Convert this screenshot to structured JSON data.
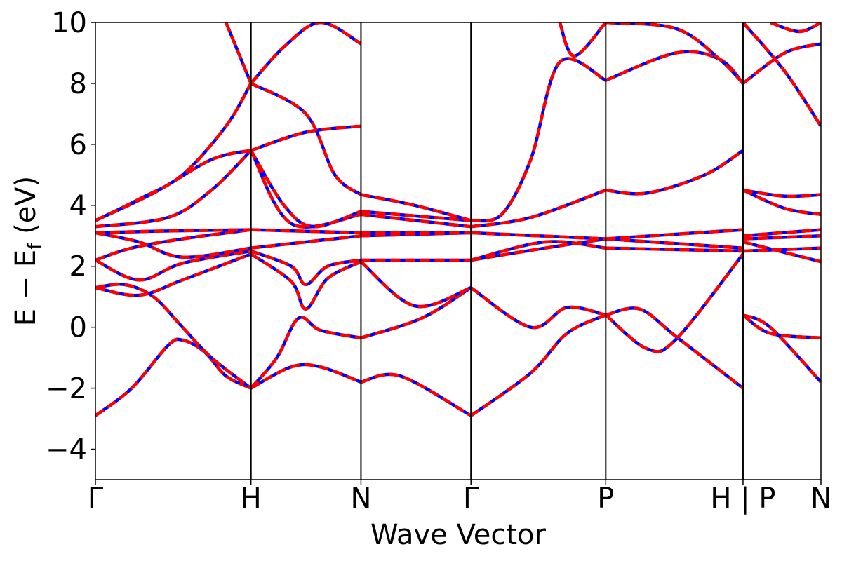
{
  "chart_data": {
    "type": "line",
    "title": "",
    "xlabel": "Wave Vector",
    "ylabel_main": "E − E",
    "ylabel_sub": "f",
    "ylabel_unit": " (eV)",
    "ylim": [
      -5,
      10
    ],
    "yticks": [
      -4,
      -2,
      0,
      2,
      4,
      6,
      8,
      10
    ],
    "ytick_labels": [
      "−4",
      "−2",
      "0",
      "2",
      "4",
      "6",
      "8",
      "10"
    ],
    "xlim": [
      0,
      1
    ],
    "kpoints": [
      {
        "label": "Γ",
        "pos": 0.0
      },
      {
        "label": "H",
        "pos": 0.2144
      },
      {
        "label": "N",
        "pos": 0.366
      },
      {
        "label": "Γ",
        "pos": 0.5176
      },
      {
        "label": "P",
        "pos": 0.7034
      },
      {
        "label": "H | P",
        "pos": 0.8926
      },
      {
        "label": "N",
        "pos": 1.0
      }
    ],
    "grid": false,
    "line_style": {
      "solid_color": "#0000ff",
      "dashed_color": "#ff0000"
    },
    "series": [
      {
        "segment": "Γ-H",
        "values": [
          [
            0.0,
            -2.9
          ],
          [
            0.05,
            -2.0
          ],
          [
            0.1,
            -0.6
          ],
          [
            0.12,
            -0.42
          ],
          [
            0.15,
            -0.8
          ],
          [
            0.18,
            -1.6
          ],
          [
            0.2144,
            -2.0
          ]
        ]
      },
      {
        "segment": "Γ-H",
        "values": [
          [
            0.0,
            1.3
          ],
          [
            0.04,
            1.4
          ],
          [
            0.08,
            1.0
          ],
          [
            0.12,
            0.0
          ],
          [
            0.16,
            -1.0
          ],
          [
            0.2144,
            -2.0
          ]
        ]
      },
      {
        "segment": "Γ-H",
        "values": [
          [
            0.0,
            1.3
          ],
          [
            0.06,
            1.05
          ],
          [
            0.12,
            1.55
          ],
          [
            0.2144,
            2.4
          ]
        ]
      },
      {
        "segment": "Γ-H",
        "values": [
          [
            0.0,
            2.2
          ],
          [
            0.06,
            1.55
          ],
          [
            0.12,
            2.1
          ],
          [
            0.2144,
            2.5
          ]
        ]
      },
      {
        "segment": "Γ-H",
        "values": [
          [
            0.0,
            2.2
          ],
          [
            0.05,
            2.6
          ],
          [
            0.12,
            2.9
          ],
          [
            0.2144,
            3.2
          ]
        ]
      },
      {
        "segment": "Γ-H",
        "values": [
          [
            0.0,
            3.1
          ],
          [
            0.06,
            2.8
          ],
          [
            0.12,
            2.3
          ],
          [
            0.2144,
            2.6
          ]
        ]
      },
      {
        "segment": "Γ-H",
        "values": [
          [
            0.0,
            3.1
          ],
          [
            0.08,
            3.15
          ],
          [
            0.2144,
            3.2
          ]
        ]
      },
      {
        "segment": "Γ-H",
        "values": [
          [
            0.0,
            3.3
          ],
          [
            0.1,
            3.6
          ],
          [
            0.16,
            4.5
          ],
          [
            0.2144,
            5.8
          ]
        ]
      },
      {
        "segment": "Γ-H",
        "values": [
          [
            0.0,
            3.5
          ],
          [
            0.08,
            4.4
          ],
          [
            0.16,
            5.5
          ],
          [
            0.2144,
            5.8
          ]
        ]
      },
      {
        "segment": "Γ-H",
        "values": [
          [
            0.0,
            3.5
          ],
          [
            0.06,
            4.2
          ],
          [
            0.12,
            5.0
          ],
          [
            0.18,
            6.6
          ],
          [
            0.2144,
            8.0
          ]
        ]
      },
      {
        "segment": "Γ-H",
        "values": [
          [
            0.18,
            10.0
          ],
          [
            0.2144,
            8.0
          ]
        ]
      },
      {
        "segment": "H-N",
        "values": [
          [
            0.2144,
            -2.0
          ],
          [
            0.27,
            -1.3
          ],
          [
            0.31,
            -1.3
          ],
          [
            0.366,
            -1.8
          ]
        ]
      },
      {
        "segment": "H-N",
        "values": [
          [
            0.2144,
            -2.0
          ],
          [
            0.25,
            -1.0
          ],
          [
            0.28,
            0.3
          ],
          [
            0.31,
            -0.1
          ],
          [
            0.366,
            -0.35
          ]
        ]
      },
      {
        "segment": "H-N",
        "values": [
          [
            0.2144,
            2.4
          ],
          [
            0.27,
            1.5
          ],
          [
            0.29,
            0.6
          ],
          [
            0.32,
            1.6
          ],
          [
            0.366,
            2.15
          ]
        ]
      },
      {
        "segment": "H-N",
        "values": [
          [
            0.2144,
            2.5
          ],
          [
            0.27,
            2.0
          ],
          [
            0.29,
            1.4
          ],
          [
            0.32,
            2.0
          ],
          [
            0.366,
            2.2
          ]
        ]
      },
      {
        "segment": "H-N",
        "values": [
          [
            0.2144,
            2.6
          ],
          [
            0.366,
            3.0
          ]
        ]
      },
      {
        "segment": "H-N",
        "values": [
          [
            0.2144,
            3.2
          ],
          [
            0.366,
            3.1
          ]
        ]
      },
      {
        "segment": "H-N",
        "values": [
          [
            0.2144,
            5.8
          ],
          [
            0.27,
            3.4
          ],
          [
            0.366,
            3.7
          ]
        ]
      },
      {
        "segment": "H-N",
        "values": [
          [
            0.2144,
            5.8
          ],
          [
            0.26,
            4.0
          ],
          [
            0.3,
            3.3
          ],
          [
            0.366,
            3.8
          ]
        ]
      },
      {
        "segment": "H-N",
        "values": [
          [
            0.2144,
            5.8
          ],
          [
            0.29,
            6.4
          ],
          [
            0.366,
            6.6
          ]
        ]
      },
      {
        "segment": "H-N",
        "values": [
          [
            0.2144,
            8.0
          ],
          [
            0.29,
            7.0
          ],
          [
            0.33,
            5.0
          ],
          [
            0.366,
            4.35
          ]
        ]
      },
      {
        "segment": "H-N",
        "values": [
          [
            0.2144,
            8.0
          ],
          [
            0.26,
            9.2
          ],
          [
            0.31,
            10.0
          ],
          [
            0.366,
            9.3
          ]
        ]
      },
      {
        "segment": "N-Γ",
        "values": [
          [
            0.366,
            -1.8
          ],
          [
            0.42,
            -1.6
          ],
          [
            0.5176,
            -2.9
          ]
        ]
      },
      {
        "segment": "N-Γ",
        "values": [
          [
            0.366,
            -0.35
          ],
          [
            0.45,
            0.3
          ],
          [
            0.5176,
            1.3
          ]
        ]
      },
      {
        "segment": "N-Γ",
        "values": [
          [
            0.366,
            2.15
          ],
          [
            0.44,
            0.7
          ],
          [
            0.5176,
            1.3
          ]
        ]
      },
      {
        "segment": "N-Γ",
        "values": [
          [
            0.366,
            2.2
          ],
          [
            0.5176,
            2.2
          ]
        ]
      },
      {
        "segment": "N-Γ",
        "values": [
          [
            0.366,
            3.0
          ],
          [
            0.5176,
            3.1
          ]
        ]
      },
      {
        "segment": "N-Γ",
        "values": [
          [
            0.366,
            3.1
          ],
          [
            0.5176,
            3.1
          ]
        ]
      },
      {
        "segment": "N-Γ",
        "values": [
          [
            0.366,
            3.7
          ],
          [
            0.5176,
            3.3
          ]
        ]
      },
      {
        "segment": "N-Γ",
        "values": [
          [
            0.366,
            3.8
          ],
          [
            0.5176,
            3.5
          ]
        ]
      },
      {
        "segment": "N-Γ",
        "values": [
          [
            0.366,
            4.35
          ],
          [
            0.44,
            4.0
          ],
          [
            0.5176,
            3.5
          ]
        ]
      },
      {
        "segment": "Γ-P",
        "values": [
          [
            0.5176,
            -2.9
          ],
          [
            0.6,
            -1.5
          ],
          [
            0.65,
            -0.2
          ],
          [
            0.7034,
            0.4
          ]
        ]
      },
      {
        "segment": "Γ-P",
        "values": [
          [
            0.5176,
            1.3
          ],
          [
            0.6,
            0.0
          ],
          [
            0.65,
            0.65
          ],
          [
            0.7034,
            0.4
          ]
        ]
      },
      {
        "segment": "Γ-P",
        "values": [
          [
            0.5176,
            2.2
          ],
          [
            0.62,
            2.6
          ],
          [
            0.7034,
            2.9
          ]
        ]
      },
      {
        "segment": "Γ-P",
        "values": [
          [
            0.5176,
            2.2
          ],
          [
            0.62,
            2.8
          ],
          [
            0.7034,
            2.6
          ]
        ]
      },
      {
        "segment": "Γ-P",
        "values": [
          [
            0.5176,
            3.1
          ],
          [
            0.7034,
            2.9
          ]
        ]
      },
      {
        "segment": "Γ-P",
        "values": [
          [
            0.5176,
            3.3
          ],
          [
            0.6,
            3.6
          ],
          [
            0.7034,
            4.5
          ]
        ]
      },
      {
        "segment": "Γ-P",
        "values": [
          [
            0.5176,
            3.5
          ],
          [
            0.56,
            3.7
          ],
          [
            0.6,
            5.5
          ],
          [
            0.64,
            8.7
          ],
          [
            0.7034,
            8.1
          ]
        ]
      },
      {
        "segment": "Γ-P",
        "values": [
          [
            0.64,
            10.0
          ],
          [
            0.66,
            8.9
          ],
          [
            0.7034,
            10.0
          ]
        ]
      },
      {
        "segment": "P-H",
        "values": [
          [
            0.7034,
            0.4
          ],
          [
            0.75,
            0.6
          ],
          [
            0.8,
            -0.3
          ],
          [
            0.8926,
            -2.0
          ]
        ]
      },
      {
        "segment": "P-H",
        "values": [
          [
            0.7034,
            0.4
          ],
          [
            0.76,
            -0.7
          ],
          [
            0.8,
            -0.4
          ],
          [
            0.8926,
            2.4
          ]
        ]
      },
      {
        "segment": "P-H",
        "values": [
          [
            0.7034,
            2.6
          ],
          [
            0.8926,
            2.5
          ]
        ]
      },
      {
        "segment": "P-H",
        "values": [
          [
            0.7034,
            2.9
          ],
          [
            0.8926,
            2.6
          ]
        ]
      },
      {
        "segment": "P-H",
        "values": [
          [
            0.7034,
            2.9
          ],
          [
            0.8926,
            3.2
          ]
        ]
      },
      {
        "segment": "P-H",
        "values": [
          [
            0.7034,
            4.5
          ],
          [
            0.76,
            4.4
          ],
          [
            0.84,
            5.0
          ],
          [
            0.8926,
            5.8
          ]
        ]
      },
      {
        "segment": "P-H",
        "values": [
          [
            0.7034,
            8.1
          ],
          [
            0.8,
            9.0
          ],
          [
            0.86,
            8.8
          ],
          [
            0.8926,
            8.0
          ]
        ]
      },
      {
        "segment": "P-H",
        "values": [
          [
            0.7034,
            10.0
          ],
          [
            0.8,
            9.8
          ],
          [
            0.86,
            8.8
          ],
          [
            0.8926,
            8.0
          ]
        ]
      },
      {
        "segment": "P-N",
        "values": [
          [
            0.8926,
            0.4
          ],
          [
            0.93,
            0.0
          ],
          [
            1.0,
            -1.8
          ]
        ]
      },
      {
        "segment": "P-N",
        "values": [
          [
            0.8926,
            0.4
          ],
          [
            0.93,
            -0.2
          ],
          [
            1.0,
            -0.35
          ]
        ]
      },
      {
        "segment": "P-N",
        "values": [
          [
            0.8926,
            2.5
          ],
          [
            1.0,
            2.6
          ]
        ]
      },
      {
        "segment": "P-N",
        "values": [
          [
            0.8926,
            2.8
          ],
          [
            1.0,
            2.15
          ]
        ]
      },
      {
        "segment": "P-N",
        "values": [
          [
            0.8926,
            2.9
          ],
          [
            1.0,
            3.0
          ]
        ]
      },
      {
        "segment": "P-N",
        "values": [
          [
            0.8926,
            3.0
          ],
          [
            1.0,
            3.2
          ]
        ]
      },
      {
        "segment": "P-N",
        "values": [
          [
            0.8926,
            4.5
          ],
          [
            0.95,
            4.3
          ],
          [
            1.0,
            4.35
          ]
        ]
      },
      {
        "segment": "P-N",
        "values": [
          [
            0.8926,
            4.5
          ],
          [
            0.95,
            3.9
          ],
          [
            1.0,
            3.7
          ]
        ]
      },
      {
        "segment": "P-N",
        "values": [
          [
            0.8926,
            8.0
          ],
          [
            0.95,
            9.0
          ],
          [
            1.0,
            9.3
          ]
        ]
      },
      {
        "segment": "P-N",
        "values": [
          [
            0.8926,
            10.0
          ],
          [
            0.95,
            8.4
          ],
          [
            1.0,
            6.6
          ]
        ]
      },
      {
        "segment": "P-N",
        "values": [
          [
            0.93,
            10.0
          ],
          [
            0.97,
            9.7
          ],
          [
            1.0,
            10.0
          ]
        ]
      }
    ]
  }
}
